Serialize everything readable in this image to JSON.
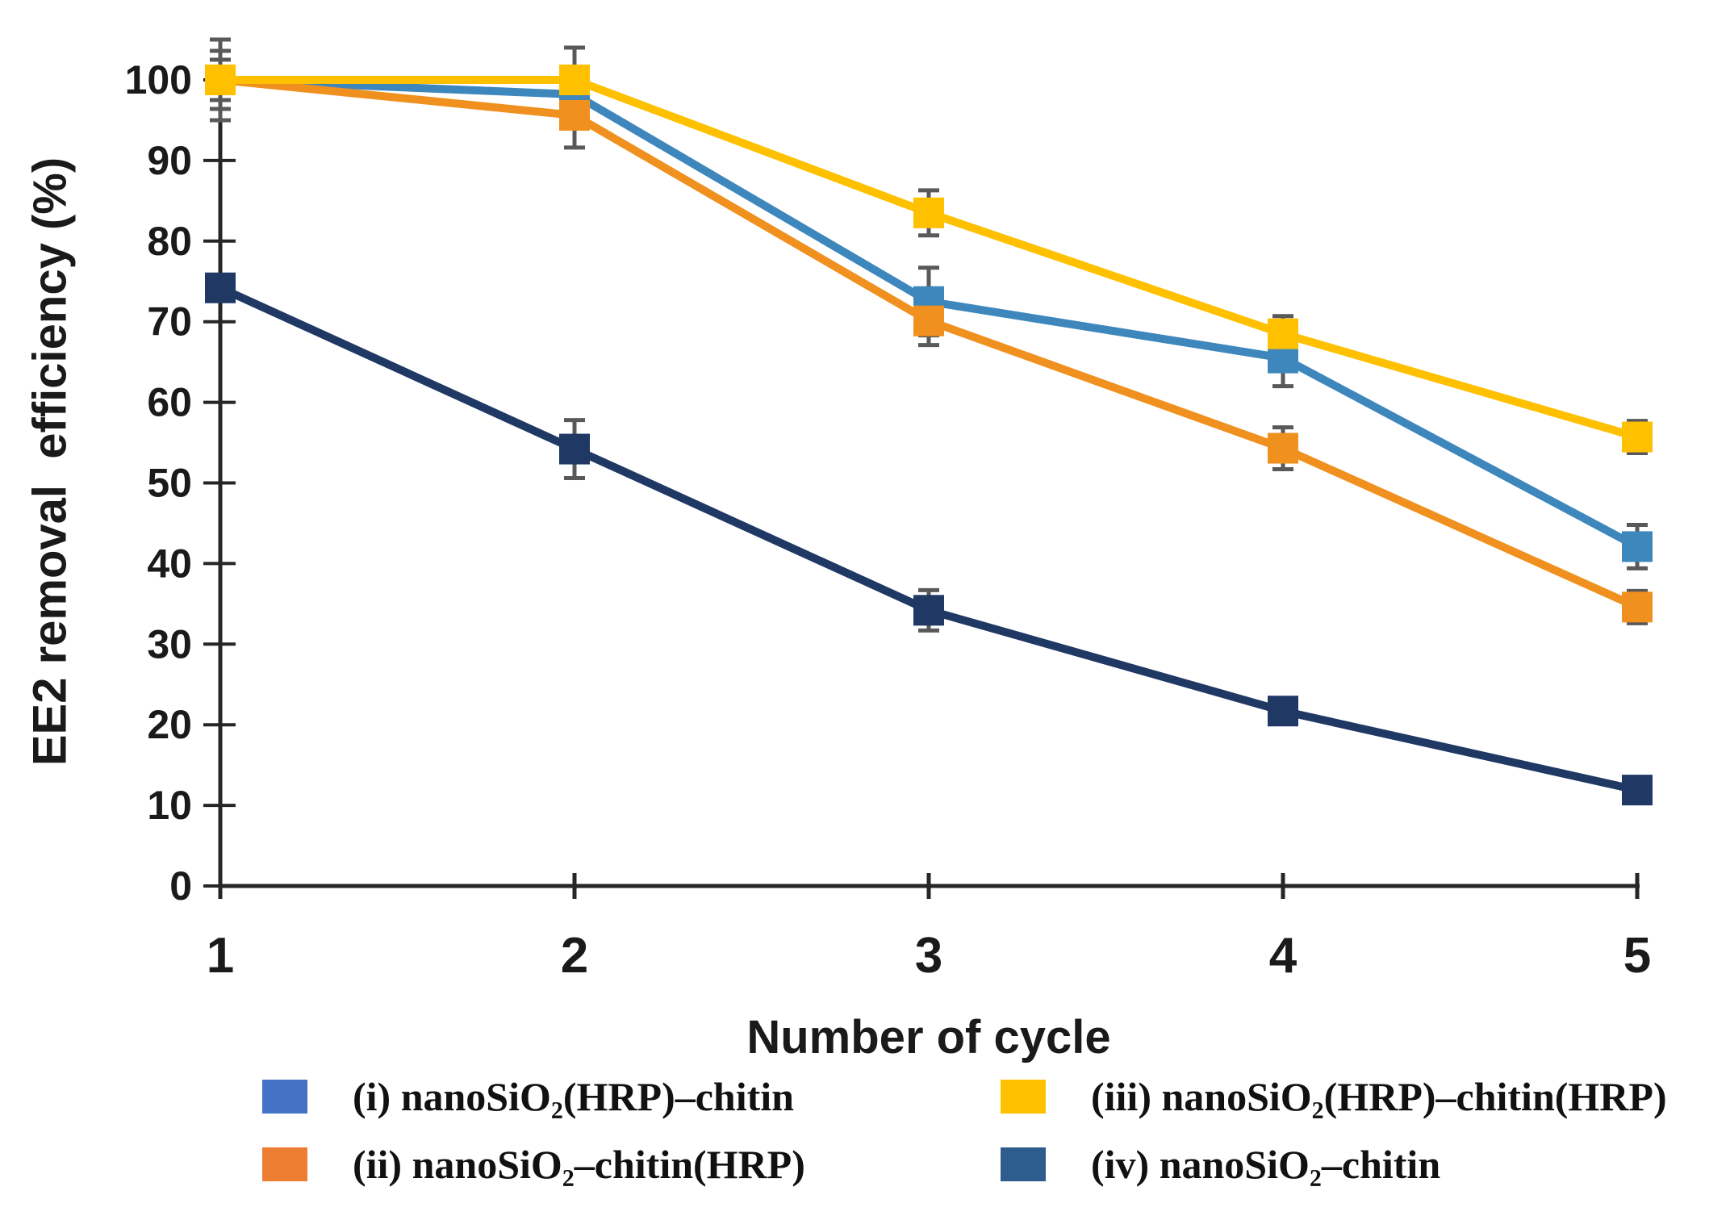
{
  "figure": {
    "y_axis_title": "EE2 removal  efficiency (%)",
    "x_axis_title": "Number of cycle"
  },
  "chart_data": {
    "type": "line",
    "title": "",
    "xlabel": "Number of cycle",
    "ylabel": "EE2 removal efficiency (%)",
    "x": [
      1,
      2,
      3,
      4,
      5
    ],
    "xtick_labels": [
      "1",
      "2",
      "3",
      "4",
      "5"
    ],
    "ytick_labels": [
      "0",
      "10",
      "20",
      "30",
      "40",
      "50",
      "60",
      "70",
      "80",
      "90",
      "100"
    ],
    "ylim": [
      0,
      100
    ],
    "grid": false,
    "legend_position": "bottom",
    "axis_color": "#262626",
    "error_bar_color": "#595959",
    "marker": "square",
    "series": [
      {
        "id": "i",
        "label": "(i) nanoSiO₂(HRP)–chitin",
        "color": "#3E87BD",
        "legend_color": "#4472C4",
        "values": [
          100,
          98.2,
          72.5,
          65.5,
          42.1
        ],
        "errors": [
          2.5,
          3.0,
          4.2,
          3.5,
          2.7
        ]
      },
      {
        "id": "ii",
        "label": "(ii) nanoSiO₂–chitin(HRP)",
        "color": "#F0901E",
        "legend_color": "#ED7D31",
        "values": [
          100,
          95.6,
          70.1,
          54.3,
          34.6
        ],
        "errors": [
          5.0,
          4.0,
          3.0,
          2.6,
          2.0
        ]
      },
      {
        "id": "iii",
        "label": "(iii) nanoSiO₂(HRP)–chitin(HRP)",
        "color": "#FFC000",
        "legend_color": "#FFC000",
        "values": [
          100,
          100,
          83.5,
          68.5,
          55.7
        ],
        "errors": [
          3.6,
          4.0,
          2.8,
          2.2,
          2.0
        ]
      },
      {
        "id": "iv",
        "label": "(iv) nanoSiO₂–chitin",
        "color": "#1F3864",
        "legend_color": "#2E5D8D",
        "values": [
          74.2,
          54.2,
          34.2,
          21.7,
          11.9
        ],
        "errors": [
          0,
          3.6,
          2.5,
          0,
          0
        ]
      }
    ]
  }
}
